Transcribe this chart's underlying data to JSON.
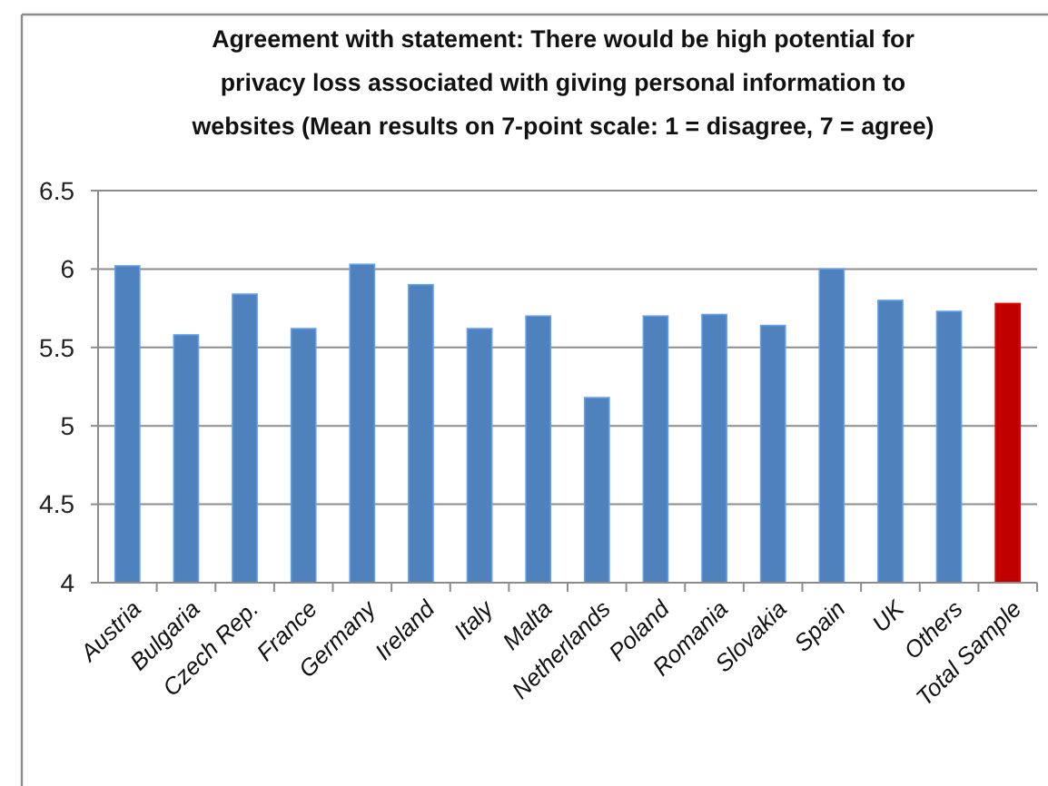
{
  "chart_data": {
    "type": "bar",
    "title": "Agreement with statement: There would be high potential for\nprivacy loss associated with giving personal information to\nwebsites (Mean results on 7-point scale: 1 = disagree, 7 = agree)",
    "categories": [
      "Austria",
      "Bulgaria",
      "Czech Rep.",
      "France",
      "Germany",
      "Ireland",
      "Italy",
      "Malta",
      "Netherlands",
      "Poland",
      "Romania",
      "Slovakia",
      "Spain",
      "UK",
      "Others",
      "Total Sample"
    ],
    "values": [
      6.02,
      5.58,
      5.84,
      5.62,
      6.03,
      5.9,
      5.62,
      5.7,
      5.18,
      5.7,
      5.71,
      5.64,
      6.0,
      5.8,
      5.73,
      5.78
    ],
    "colors": [
      "#4f81bd",
      "#4f81bd",
      "#4f81bd",
      "#4f81bd",
      "#4f81bd",
      "#4f81bd",
      "#4f81bd",
      "#4f81bd",
      "#4f81bd",
      "#4f81bd",
      "#4f81bd",
      "#4f81bd",
      "#4f81bd",
      "#4f81bd",
      "#4f81bd",
      "#c00000"
    ],
    "ylim": [
      4,
      6.5
    ],
    "yticks": [
      4,
      4.5,
      5,
      5.5,
      6,
      6.5
    ],
    "grid": "y"
  }
}
